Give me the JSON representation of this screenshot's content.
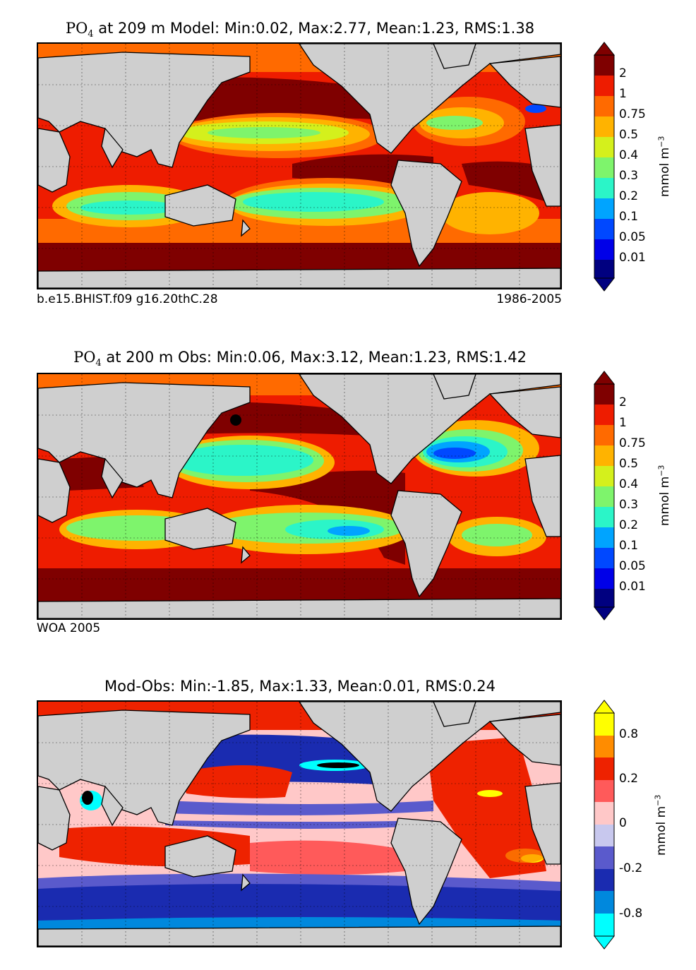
{
  "panels": [
    {
      "title_species": "PO",
      "title_sub": "4",
      "title_rest": "at 209 m Model: Min:0.02, Max:2.77, Mean:1.23, RMS:1.38",
      "footer_left": "b.e15.BHIST.f09 g16.20thC.28",
      "footer_right": "1986-2005",
      "colorbar": {
        "ticks": [
          "2",
          "1",
          "0.75",
          "0.5",
          "0.4",
          "0.3",
          "0.2",
          "0.1",
          "0.05",
          "0.01"
        ],
        "colors": [
          "#7f0000",
          "#ee1c00",
          "#ff6a00",
          "#ffb300",
          "#d4f01c",
          "#7ef46c",
          "#2bf5c8",
          "#00a4ff",
          "#0048ff",
          "#0000e8",
          "#000080"
        ],
        "unit": "mmol m",
        "unit_exp": "−3"
      }
    },
    {
      "title_species": "PO",
      "title_sub": "4",
      "title_rest": "at 200 m Obs: Min:0.06, Max:3.12, Mean:1.23, RMS:1.42",
      "footer_left": "WOA 2005",
      "footer_right": "",
      "colorbar": {
        "ticks": [
          "2",
          "1",
          "0.75",
          "0.5",
          "0.4",
          "0.3",
          "0.2",
          "0.1",
          "0.05",
          "0.01"
        ],
        "colors": [
          "#7f0000",
          "#ee1c00",
          "#ff6a00",
          "#ffb300",
          "#d4f01c",
          "#7ef46c",
          "#2bf5c8",
          "#00a4ff",
          "#0048ff",
          "#0000e8",
          "#000080"
        ],
        "unit": "mmol m",
        "unit_exp": "−3"
      }
    },
    {
      "title_text": "Mod-Obs: Min:-1.85, Max:1.33, Mean:0.01, RMS:0.24",
      "colorbar": {
        "ticks": [
          "0.8",
          "0.2",
          "0",
          "-0.2",
          "-0.8"
        ],
        "colors": [
          "#ffff00",
          "#ff8c00",
          "#ee2200",
          "#ff5a5a",
          "#ffc8c8",
          "#c8c8ee",
          "#5a5acc",
          "#1a2bb0",
          "#0088dd",
          "#00ffff"
        ],
        "unit": "mmol m",
        "unit_exp": "−3"
      }
    }
  ]
}
